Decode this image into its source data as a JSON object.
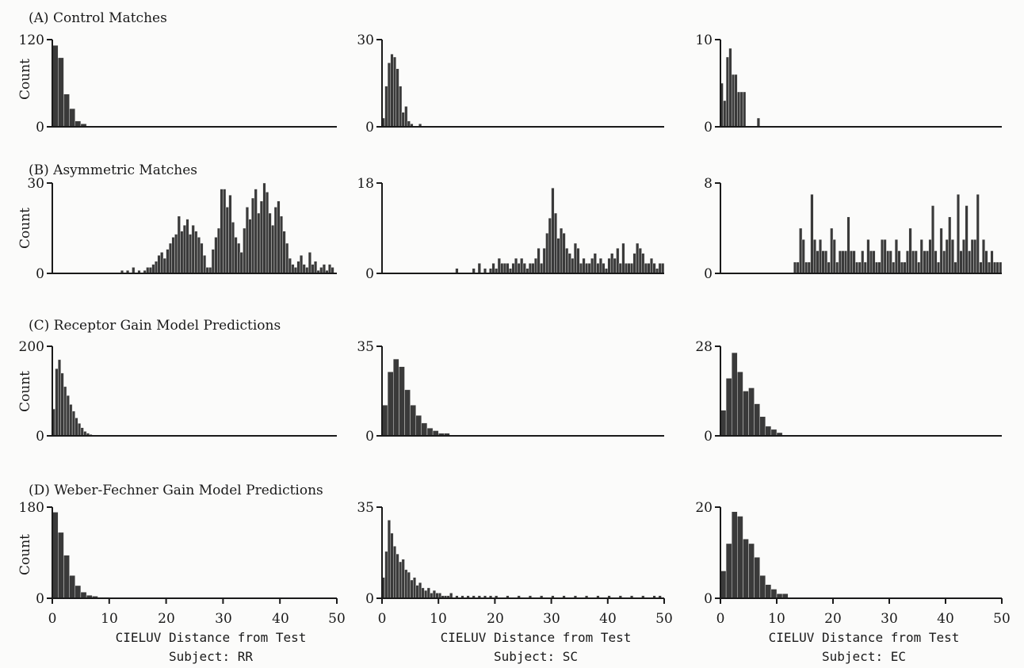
{
  "figure": {
    "x_axis_label": "CIELUV Distance from Test",
    "x_ticks": [
      "0",
      "10",
      "20",
      "30",
      "40",
      "50"
    ],
    "y_axis_label": "Count",
    "subjects": [
      "Subject: RR",
      "Subject: SC",
      "Subject: EC"
    ],
    "row_titles": [
      "(A) Control Matches",
      "(B) Asymmetric Matches",
      "(C) Receptor Gain Model Predictions",
      "(D) Weber-Fechner Gain Model Predictions"
    ]
  },
  "chart_data": [
    {
      "type": "bar",
      "row": "(A) Control Matches",
      "subject": "Subject: RR",
      "bin_width": 1,
      "xlim": [
        0,
        50
      ],
      "ylim": [
        0,
        120
      ],
      "y_ticks": [
        "0",
        "120"
      ],
      "bin_starts": [
        0,
        1,
        2,
        3,
        4,
        5,
        6
      ],
      "values": [
        112,
        95,
        45,
        25,
        8,
        4,
        1
      ]
    },
    {
      "type": "bar",
      "row": "(A) Control Matches",
      "subject": "Subject: SC",
      "bin_width": 0.5,
      "xlim": [
        0,
        50
      ],
      "ylim": [
        0,
        30
      ],
      "y_ticks": [
        "0",
        "30"
      ],
      "bin_starts": [
        0,
        0.5,
        1,
        1.5,
        2,
        2.5,
        3,
        3.5,
        4,
        4.5,
        5,
        6.5
      ],
      "values": [
        3,
        14,
        22,
        25,
        24,
        20,
        14,
        5,
        7,
        2,
        1,
        1
      ]
    },
    {
      "type": "bar",
      "row": "(A) Control Matches",
      "subject": "Subject: EC",
      "bin_width": 0.5,
      "xlim": [
        0,
        50
      ],
      "ylim": [
        0,
        10
      ],
      "y_ticks": [
        "0",
        "10"
      ],
      "bin_starts": [
        0,
        0.5,
        1,
        1.5,
        2,
        2.5,
        3,
        3.5,
        4,
        6.5
      ],
      "values": [
        5,
        3,
        8,
        9,
        6,
        6,
        4,
        4,
        4,
        1
      ]
    },
    {
      "type": "bar",
      "row": "(B) Asymmetric Matches",
      "subject": "Subject: RR",
      "bin_width": 0.5,
      "xlim": [
        0,
        50
      ],
      "ylim": [
        0,
        30
      ],
      "y_ticks": [
        "0",
        "30"
      ],
      "bin_starts": [
        12,
        13,
        14,
        15,
        16,
        16.5,
        17,
        17.5,
        18,
        18.5,
        19,
        19.5,
        20,
        20.5,
        21,
        21.5,
        22,
        22.5,
        23,
        23.5,
        24,
        24.5,
        25,
        25.5,
        26,
        26.5,
        27,
        27.5,
        28,
        28.5,
        29,
        29.5,
        30,
        30.5,
        31,
        31.5,
        32,
        32.5,
        33,
        33.5,
        34,
        34.5,
        35,
        35.5,
        36,
        36.5,
        37,
        37.5,
        38,
        38.5,
        39,
        39.5,
        40,
        40.5,
        41,
        41.5,
        42,
        42.5,
        43,
        43.5,
        44,
        44.5,
        45,
        45.5,
        46,
        46.5,
        47,
        47.5,
        48,
        48.5,
        49
      ],
      "values": [
        1,
        1,
        2,
        1,
        1,
        2,
        2,
        3,
        4,
        6,
        7,
        5,
        8,
        10,
        12,
        13,
        19,
        14,
        16,
        18,
        13,
        16,
        14,
        12,
        10,
        6,
        2,
        2,
        8,
        12,
        15,
        28,
        28,
        22,
        26,
        17,
        12,
        10,
        7,
        15,
        22,
        18,
        25,
        28,
        20,
        24,
        30,
        27,
        20,
        16,
        22,
        24,
        19,
        14,
        10,
        5,
        3,
        2,
        4,
        6,
        3,
        2,
        7,
        3,
        4,
        1,
        2,
        3,
        1,
        3,
        2
      ]
    },
    {
      "type": "bar",
      "row": "(B) Asymmetric Matches",
      "subject": "Subject: SC",
      "bin_width": 0.5,
      "xlim": [
        0,
        50
      ],
      "ylim": [
        0,
        18
      ],
      "y_ticks": [
        "0",
        "18"
      ],
      "bin_starts": [
        13,
        16,
        17,
        18,
        19,
        19.5,
        20,
        20.5,
        21,
        21.5,
        22,
        22.5,
        23,
        23.5,
        24,
        24.5,
        25,
        25.5,
        26,
        26.5,
        27,
        27.5,
        28,
        28.5,
        29,
        29.5,
        30,
        30.5,
        31,
        31.5,
        32,
        32.5,
        33,
        33.5,
        34,
        34.5,
        35,
        35.5,
        36,
        36.5,
        37,
        37.5,
        38,
        38.5,
        39,
        39.5,
        40,
        40.5,
        41,
        41.5,
        42,
        42.5,
        43,
        43.5,
        44,
        44.5,
        45,
        45.5,
        46,
        46.5,
        47,
        47.5,
        48,
        48.5,
        49,
        49.5
      ],
      "values": [
        1,
        1,
        2,
        1,
        1,
        2,
        1,
        3,
        2,
        2,
        2,
        1,
        2,
        3,
        2,
        3,
        2,
        1,
        2,
        2,
        3,
        5,
        2,
        5,
        8,
        11,
        17,
        12,
        7,
        9,
        8,
        5,
        4,
        3,
        6,
        5,
        2,
        3,
        2,
        2,
        3,
        4,
        2,
        3,
        2,
        1,
        3,
        4,
        3,
        5,
        2,
        6,
        2,
        2,
        2,
        4,
        6,
        5,
        4,
        2,
        2,
        3,
        2,
        1,
        2,
        2
      ]
    },
    {
      "type": "bar",
      "row": "(B) Asymmetric Matches",
      "subject": "Subject: EC",
      "bin_width": 0.5,
      "xlim": [
        0,
        50
      ],
      "ylim": [
        0,
        8
      ],
      "y_ticks": [
        "0",
        "8"
      ],
      "bin_starts": [
        13,
        13.5,
        14,
        14.5,
        15,
        15.5,
        16,
        16.5,
        17,
        17.5,
        18,
        18.5,
        19,
        19.5,
        20,
        20.5,
        21,
        21.5,
        22,
        22.5,
        23,
        23.5,
        24,
        24.5,
        25,
        25.5,
        26,
        26.5,
        27,
        27.5,
        28,
        28.5,
        29,
        29.5,
        30,
        30.5,
        31,
        31.5,
        32,
        32.5,
        33,
        33.5,
        34,
        34.5,
        35,
        35.5,
        36,
        36.5,
        37,
        37.5,
        38,
        38.5,
        39,
        39.5,
        40,
        40.5,
        41,
        41.5,
        42,
        42.5,
        43,
        43.5,
        44,
        44.5,
        45,
        45.5,
        46,
        46.5,
        47,
        47.5,
        48,
        48.5,
        49,
        49.5
      ],
      "values": [
        1,
        1,
        4,
        3,
        1,
        1,
        7,
        3,
        2,
        3,
        2,
        2,
        1,
        4,
        3,
        1,
        2,
        2,
        2,
        5,
        2,
        2,
        1,
        1,
        2,
        1,
        3,
        2,
        2,
        1,
        1,
        3,
        3,
        2,
        2,
        1,
        3,
        2,
        1,
        1,
        2,
        4,
        2,
        2,
        1,
        3,
        2,
        2,
        3,
        6,
        2,
        1,
        4,
        2,
        3,
        5,
        3,
        1,
        7,
        2,
        3,
        6,
        2,
        3,
        3,
        7,
        1,
        3,
        2,
        1,
        2,
        1,
        1,
        1
      ]
    },
    {
      "type": "bar",
      "row": "(C) Receptor Gain Model Predictions",
      "subject": "Subject: RR",
      "bin_width": 0.5,
      "xlim": [
        0,
        50
      ],
      "ylim": [
        0,
        200
      ],
      "y_ticks": [
        "0",
        "200"
      ],
      "bin_starts": [
        0,
        0.5,
        1,
        1.5,
        2,
        2.5,
        3,
        3.5,
        4,
        4.5,
        5,
        5.5,
        6,
        6.5,
        7
      ],
      "values": [
        60,
        150,
        170,
        140,
        110,
        90,
        70,
        55,
        40,
        28,
        18,
        10,
        6,
        3,
        1
      ]
    },
    {
      "type": "bar",
      "row": "(C) Receptor Gain Model Predictions",
      "subject": "Subject: SC",
      "bin_width": 1,
      "xlim": [
        0,
        50
      ],
      "ylim": [
        0,
        35
      ],
      "y_ticks": [
        "0",
        "35"
      ],
      "bin_starts": [
        0,
        1,
        2,
        3,
        4,
        5,
        6,
        7,
        8,
        9,
        10,
        11
      ],
      "values": [
        12,
        25,
        30,
        27,
        18,
        12,
        8,
        5,
        3,
        2,
        1,
        1
      ]
    },
    {
      "type": "bar",
      "row": "(C) Receptor Gain Model Predictions",
      "subject": "Subject: EC",
      "bin_width": 1,
      "xlim": [
        0,
        50
      ],
      "ylim": [
        0,
        28
      ],
      "y_ticks": [
        "0",
        "28"
      ],
      "bin_starts": [
        0,
        1,
        2,
        3,
        4,
        5,
        6,
        7,
        8,
        9,
        10
      ],
      "values": [
        8,
        18,
        26,
        20,
        14,
        15,
        10,
        6,
        3,
        2,
        1
      ]
    },
    {
      "type": "bar",
      "row": "(D) Weber-Fechner Gain Model Predictions",
      "subject": "Subject: RR",
      "bin_width": 1,
      "xlim": [
        0,
        50
      ],
      "ylim": [
        0,
        180
      ],
      "y_ticks": [
        "0",
        "180"
      ],
      "bin_starts": [
        0,
        1,
        2,
        3,
        4,
        5,
        6,
        7,
        8,
        9,
        10,
        11,
        12,
        13,
        14,
        15,
        16,
        17,
        18,
        19,
        20,
        21,
        22,
        23,
        24,
        25,
        26,
        27,
        28,
        29,
        30,
        31,
        32,
        33,
        34,
        35,
        36,
        37,
        38,
        39,
        40,
        41,
        42,
        43,
        44,
        45,
        46,
        47,
        48,
        49
      ],
      "values": [
        170,
        130,
        85,
        45,
        25,
        12,
        6,
        4,
        2,
        2,
        1,
        1,
        1,
        1,
        1,
        1,
        1,
        1,
        1,
        1,
        1,
        1,
        1,
        1,
        1,
        1,
        1,
        1,
        1,
        1,
        1,
        1,
        1,
        1,
        1,
        1,
        1,
        1,
        1,
        1,
        1,
        1,
        1,
        1,
        1,
        1,
        1,
        1,
        1,
        1
      ]
    },
    {
      "type": "bar",
      "row": "(D) Weber-Fechner Gain Model Predictions",
      "subject": "Subject: SC",
      "bin_width": 0.5,
      "xlim": [
        0,
        50
      ],
      "ylim": [
        0,
        35
      ],
      "y_ticks": [
        "0",
        "35"
      ],
      "bin_starts": [
        0,
        0.5,
        1,
        1.5,
        2,
        2.5,
        3,
        3.5,
        4,
        4.5,
        5,
        5.5,
        6,
        6.5,
        7,
        7.5,
        8,
        8.5,
        9,
        9.5,
        10,
        10.5,
        11,
        11.5,
        12,
        13,
        14,
        15,
        16,
        17,
        18,
        19,
        20,
        22,
        24,
        26,
        28,
        30,
        32,
        34,
        36,
        38,
        40,
        42,
        44,
        46,
        48,
        49
      ],
      "values": [
        8,
        18,
        30,
        25,
        20,
        17,
        14,
        15,
        11,
        10,
        7,
        8,
        5,
        6,
        4,
        3,
        4,
        2,
        3,
        2,
        2,
        1,
        1,
        1,
        2,
        1,
        1,
        1,
        1,
        1,
        1,
        1,
        1,
        1,
        1,
        1,
        1,
        1,
        1,
        1,
        1,
        1,
        1,
        1,
        1,
        1,
        1,
        1
      ]
    },
    {
      "type": "bar",
      "row": "(D) Weber-Fechner Gain Model Predictions",
      "subject": "Subject: EC",
      "bin_width": 1,
      "xlim": [
        0,
        50
      ],
      "ylim": [
        0,
        20
      ],
      "y_ticks": [
        "0",
        "20"
      ],
      "bin_starts": [
        0,
        1,
        2,
        3,
        4,
        5,
        6,
        7,
        8,
        9,
        10,
        11
      ],
      "values": [
        6,
        12,
        19,
        18,
        13,
        12,
        9,
        5,
        3,
        2,
        1,
        1
      ]
    }
  ]
}
